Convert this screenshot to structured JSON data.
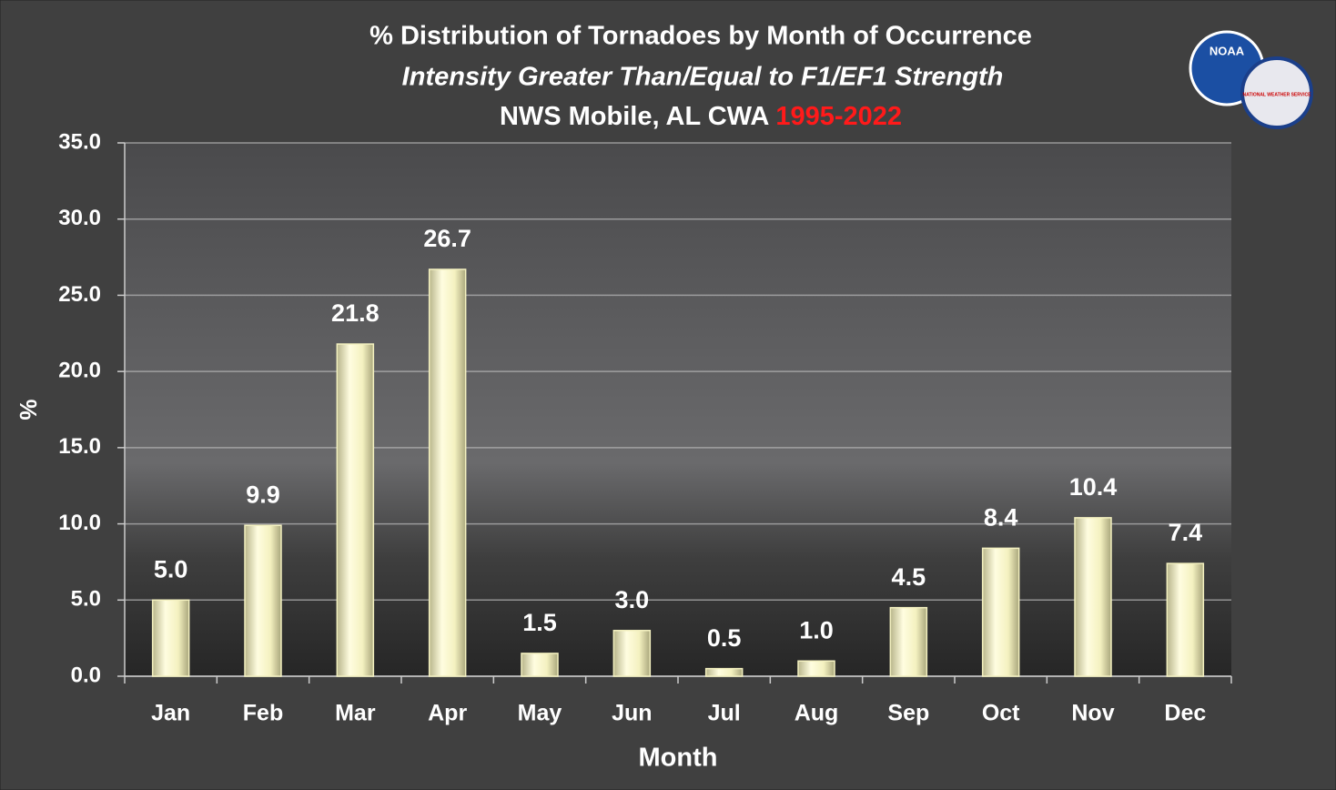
{
  "chart_data": {
    "type": "bar",
    "title": "% Distribution of Tornadoes by Month of Occurrence",
    "subtitle": "Intensity Greater Than/Equal to F1/EF1 Strength",
    "location": "NWS Mobile, AL CWA",
    "period": "1995-2022",
    "logo": {
      "agency": "NOAA",
      "service": "NATIONAL WEATHER SERVICE"
    },
    "xlabel": "Month",
    "ylabel": "%",
    "categories": [
      "Jan",
      "Feb",
      "Mar",
      "Apr",
      "May",
      "Jun",
      "Jul",
      "Aug",
      "Sep",
      "Oct",
      "Nov",
      "Dec"
    ],
    "values": [
      5,
      9.9,
      21.8,
      26.7,
      1.5,
      3,
      0.5,
      1,
      4.5,
      8.4,
      10.4,
      7.4
    ],
    "value_labels": [
      "5.0",
      "9.9",
      "21.8",
      "26.7",
      "1.5",
      "3.0",
      "0.5",
      "1.0",
      "4.5",
      "8.4",
      "10.4",
      "7.4"
    ],
    "color": "#f4f1c0",
    "ylim": [
      0,
      35
    ],
    "yticks": [
      {
        "value": 0,
        "label": "0.0"
      },
      {
        "value": 5,
        "label": "5.0"
      },
      {
        "value": 10,
        "label": "10.0"
      },
      {
        "value": 15,
        "label": "15.0"
      },
      {
        "value": 20,
        "label": "20.0"
      },
      {
        "value": 25,
        "label": "25.0"
      },
      {
        "value": 30,
        "label": "30.0"
      },
      {
        "value": 35,
        "label": "35.0"
      }
    ],
    "grid": true
  }
}
